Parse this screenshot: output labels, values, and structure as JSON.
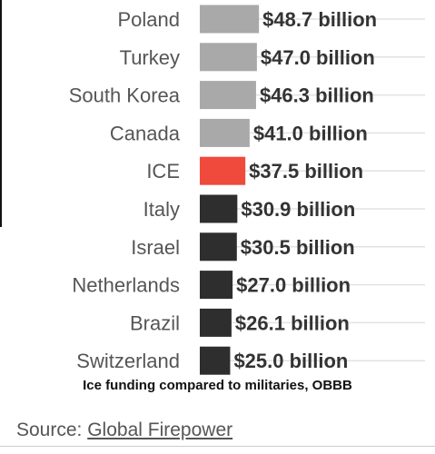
{
  "chart_data": {
    "type": "bar",
    "orientation": "horizontal",
    "categories": [
      "Poland",
      "Turkey",
      "South Korea",
      "Canada",
      "ICE",
      "Italy",
      "Israel",
      "Netherlands",
      "Brazil",
      "Switzerland"
    ],
    "values": [
      48.7,
      47.0,
      46.3,
      41.0,
      37.5,
      30.9,
      30.5,
      27.0,
      26.1,
      25.0
    ],
    "value_labels": [
      "$48.7 billion",
      "$47.0 billion",
      "$46.3 billion",
      "$41.0 billion",
      "$37.5 billion",
      "$30.9 billion",
      "$30.5 billion",
      "$27.0 billion",
      "$26.1 billion",
      "$25.0 billion"
    ],
    "bar_colors": [
      "#a9a9a9",
      "#a9a9a9",
      "#a9a9a9",
      "#a9a9a9",
      "#f04a3c",
      "#2e2e2e",
      "#2e2e2e",
      "#2e2e2e",
      "#2e2e2e",
      "#2e2e2e"
    ],
    "grid": true,
    "title": "",
    "xlabel": "",
    "ylabel": ""
  },
  "caption": "Ice funding compared to militaries, OBBB",
  "source": {
    "prefix": "Source: ",
    "link_text": "Global Firepower"
  }
}
